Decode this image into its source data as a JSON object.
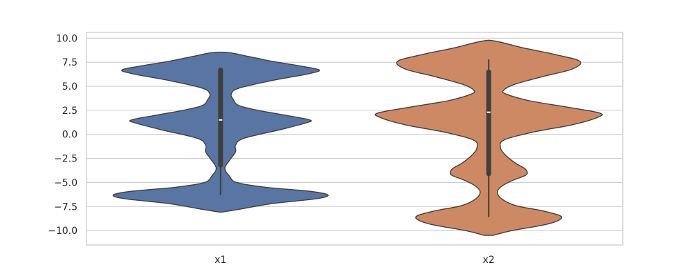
{
  "chart_data": {
    "type": "violin",
    "grid": true,
    "ylim": [
      -11.5,
      10.6
    ],
    "yticks": [
      10.0,
      7.5,
      5.0,
      2.5,
      0.0,
      -2.5,
      -5.0,
      -7.5,
      -10.0
    ],
    "ytick_labels": [
      "10.0",
      "7.5",
      "5.0",
      "2.5",
      "0.0",
      "−2.5",
      "−5.0",
      "−7.5",
      "−10.0"
    ],
    "categories": [
      "x1",
      "x2"
    ],
    "series": [
      {
        "category": "x1",
        "color": "#5975a4",
        "median": 1.5,
        "q1": -3.2,
        "q3": 6.7,
        "whisker_low": -6.3,
        "whisker_high": 6.7,
        "extent": [
          -8.1,
          8.5
        ],
        "profile": [
          [
            -8.1,
            0.0
          ],
          [
            -7.8,
            0.17
          ],
          [
            -7.2,
            0.48
          ],
          [
            -6.7,
            0.89
          ],
          [
            -6.3,
            1.0
          ],
          [
            -5.9,
            0.82
          ],
          [
            -5.5,
            0.42
          ],
          [
            -5.0,
            0.15
          ],
          [
            -4.3,
            0.08
          ],
          [
            -3.5,
            0.04
          ],
          [
            -2.6,
            0.09
          ],
          [
            -1.8,
            0.14
          ],
          [
            -1.1,
            0.14
          ],
          [
            -0.4,
            0.22
          ],
          [
            0.5,
            0.56
          ],
          [
            1.2,
            0.8
          ],
          [
            1.5,
            0.83
          ],
          [
            2.0,
            0.6
          ],
          [
            2.5,
            0.35
          ],
          [
            3.0,
            0.17
          ],
          [
            3.6,
            0.12
          ],
          [
            4.2,
            0.1
          ],
          [
            4.8,
            0.17
          ],
          [
            5.6,
            0.48
          ],
          [
            6.3,
            0.82
          ],
          [
            6.7,
            0.92
          ],
          [
            7.1,
            0.75
          ],
          [
            7.6,
            0.48
          ],
          [
            8.1,
            0.26
          ],
          [
            8.5,
            0.08
          ]
        ]
      },
      {
        "category": "x2",
        "color": "#cc8963",
        "median": 2.3,
        "q1": -4.1,
        "q3": 6.5,
        "whisker_low": -8.6,
        "whisker_high": 7.8,
        "extent": [
          -10.5,
          9.7
        ],
        "profile": [
          [
            -10.5,
            0.04
          ],
          [
            -10.0,
            0.22
          ],
          [
            -9.3,
            0.56
          ],
          [
            -8.6,
            0.68
          ],
          [
            -8.0,
            0.52
          ],
          [
            -7.4,
            0.25
          ],
          [
            -6.7,
            0.12
          ],
          [
            -6.0,
            0.08
          ],
          [
            -5.4,
            0.12
          ],
          [
            -4.8,
            0.22
          ],
          [
            -4.2,
            0.35
          ],
          [
            -3.6,
            0.34
          ],
          [
            -3.0,
            0.25
          ],
          [
            -2.2,
            0.16
          ],
          [
            -1.4,
            0.11
          ],
          [
            -0.6,
            0.14
          ],
          [
            0.2,
            0.4
          ],
          [
            1.0,
            0.78
          ],
          [
            1.7,
            1.0
          ],
          [
            2.2,
            1.04
          ],
          [
            2.8,
            0.75
          ],
          [
            3.5,
            0.38
          ],
          [
            4.2,
            0.16
          ],
          [
            4.6,
            0.14
          ],
          [
            5.2,
            0.24
          ],
          [
            6.0,
            0.5
          ],
          [
            6.8,
            0.78
          ],
          [
            7.6,
            0.85
          ],
          [
            8.3,
            0.62
          ],
          [
            9.0,
            0.32
          ],
          [
            9.7,
            0.06
          ]
        ]
      }
    ]
  }
}
